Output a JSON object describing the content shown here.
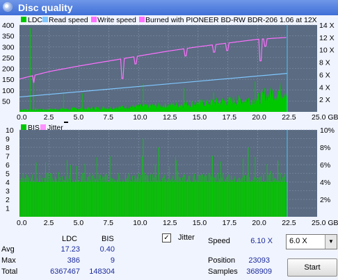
{
  "window": {
    "title": "Disc quality"
  },
  "colors": {
    "ldc": "#00c800",
    "read_speed": "#80c8ff",
    "write_speed": "#ff70ff",
    "bis": "#00c800",
    "jitter": "#ff90ff",
    "plot_bg": "#5a6b82"
  },
  "chart_data": [
    {
      "type": "area",
      "legend": [
        "LDC",
        "Read speed",
        "Write speed",
        "Burned with PIONEER BD-RW   BDR-206 1.06 at 12X"
      ],
      "x_ticks": [
        "0.0",
        "2.5",
        "5.0",
        "7.5",
        "10.0",
        "12.5",
        "15.0",
        "17.5",
        "20.0",
        "22.5",
        "25.0 GB"
      ],
      "y_left_ticks": [
        "400",
        "350",
        "300",
        "250",
        "200",
        "150",
        "100",
        "50"
      ],
      "y_right_ticks": [
        "14 X",
        "12 X",
        "10 X",
        "8 X",
        "6 X",
        "4 X",
        "2 X"
      ],
      "xlim": [
        0,
        25
      ],
      "ylim": [
        0,
        400
      ],
      "y2lim": [
        0,
        14
      ],
      "read_speed": {
        "x": [
          0,
          22.5
        ],
        "y": [
          2.4,
          6.2
        ]
      },
      "write_speed": {
        "x": [
          0,
          2.5,
          5,
          7.5,
          10,
          12.5,
          15,
          17.5,
          20,
          22.5
        ],
        "y": [
          5.3,
          6.5,
          7.4,
          8.2,
          9.0,
          9.8,
          10.5,
          11.1,
          11.7,
          12.0
        ]
      },
      "ldc_typical": {
        "x": [
          0,
          5,
          10,
          15,
          20,
          22.5
        ],
        "y": [
          10,
          15,
          25,
          40,
          60,
          110
        ]
      }
    },
    {
      "type": "area",
      "legend": [
        "BIS",
        "Jitter"
      ],
      "x_ticks": [
        "0.0",
        "2.5",
        "5.0",
        "7.5",
        "10.0",
        "12.5",
        "15.0",
        "17.5",
        "20.0",
        "22.5",
        "25.0 GB"
      ],
      "y_left_ticks": [
        "10",
        "9",
        "8",
        "7",
        "6",
        "5",
        "4",
        "3",
        "2",
        "1"
      ],
      "y_right_ticks": [
        "10%",
        "8%",
        "6%",
        "4%",
        "2%"
      ],
      "xlim": [
        0,
        25
      ],
      "ylim": [
        0,
        10
      ],
      "y2lim": [
        0,
        10
      ],
      "bis_typical": {
        "x": [
          0,
          22.5
        ],
        "y": [
          4,
          4
        ]
      },
      "bis_max": 9
    }
  ],
  "stats": {
    "col_ldc": "LDC",
    "col_bis": "BIS",
    "avg_label": "Avg",
    "max_label": "Max",
    "total_label": "Total",
    "avg_ldc": "17.23",
    "avg_bis": "0.40",
    "max_ldc": "386",
    "max_bis": "9",
    "total_ldc": "6367467",
    "total_bis": "148304"
  },
  "controls": {
    "jitter_label": "Jitter",
    "jitter_checked": "✓",
    "speed_label": "Speed",
    "speed_value": "6.10 X",
    "position_label": "Position",
    "position_value": "23093",
    "samples_label": "Samples",
    "samples_value": "368909",
    "speed_select": "6.0 X",
    "start_label": "Start"
  }
}
